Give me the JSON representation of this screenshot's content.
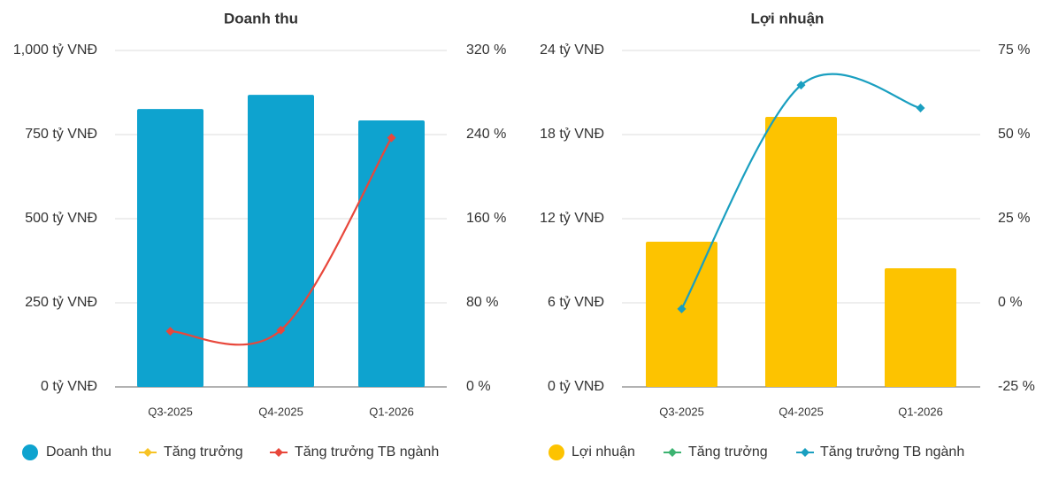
{
  "chart_data": [
    {
      "type": "bar",
      "title": "Doanh thu",
      "categories": [
        "Q3-2025",
        "Q4-2025",
        "Q1-2026"
      ],
      "series": [
        {
          "name": "Doanh thu",
          "type": "bar",
          "color": "#0ea3cf",
          "values": [
            826,
            868,
            792
          ]
        },
        {
          "name": "Tăng trưởng",
          "type": "line",
          "axis": "y2",
          "color": "#f7c325",
          "values": [
            null,
            null,
            null
          ]
        },
        {
          "name": "Tăng trưởng TB ngành",
          "type": "line",
          "axis": "y2",
          "color": "#e8473b",
          "values": [
            53,
            54,
            237
          ]
        }
      ],
      "ylim": [
        0,
        1000
      ],
      "yticks": [
        {
          "value": 0,
          "label": "0 tỷ VNĐ"
        },
        {
          "value": 250,
          "label": "250 tỷ VNĐ"
        },
        {
          "value": 500,
          "label": "500 tỷ VNĐ"
        },
        {
          "value": 750,
          "label": "750 tỷ VNĐ"
        },
        {
          "value": 1000,
          "label": "1,000 tỷ VNĐ"
        }
      ],
      "y2lim": [
        0,
        320
      ],
      "y2ticks": [
        {
          "value": 0,
          "label": "0 %"
        },
        {
          "value": 80,
          "label": "80 %"
        },
        {
          "value": 160,
          "label": "160 %"
        },
        {
          "value": 240,
          "label": "240 %"
        },
        {
          "value": 320,
          "label": "320 %"
        }
      ],
      "grid": true,
      "legend": "bottom"
    },
    {
      "type": "bar",
      "title": "Lợi nhuận",
      "categories": [
        "Q3-2025",
        "Q4-2025",
        "Q1-2026"
      ],
      "series": [
        {
          "name": "Lợi nhuận",
          "type": "bar",
          "color": "#fdc300",
          "values": [
            10.36,
            19.26,
            8.46
          ]
        },
        {
          "name": "Tăng trưởng",
          "type": "line",
          "axis": "y2",
          "color": "#3cb371",
          "values": [
            null,
            null,
            null
          ]
        },
        {
          "name": "Tăng trưởng TB ngành",
          "type": "line",
          "axis": "y2",
          "color": "#1a9fc0",
          "values": [
            -1.8,
            64.7,
            57.9
          ]
        }
      ],
      "ylim": [
        0,
        24
      ],
      "yticks": [
        {
          "value": 0,
          "label": "0 tỷ VNĐ"
        },
        {
          "value": 6,
          "label": "6 tỷ VNĐ"
        },
        {
          "value": 12,
          "label": "12 tỷ VNĐ"
        },
        {
          "value": 18,
          "label": "18 tỷ VNĐ"
        },
        {
          "value": 24,
          "label": "24 tỷ VNĐ"
        }
      ],
      "y2lim": [
        -25,
        75
      ],
      "y2ticks": [
        {
          "value": -25,
          "label": "-25 %"
        },
        {
          "value": 0,
          "label": "0 %"
        },
        {
          "value": 25,
          "label": "25 %"
        },
        {
          "value": 50,
          "label": "50 %"
        },
        {
          "value": 75,
          "label": "75 %"
        }
      ],
      "grid": true,
      "legend": "bottom"
    }
  ]
}
